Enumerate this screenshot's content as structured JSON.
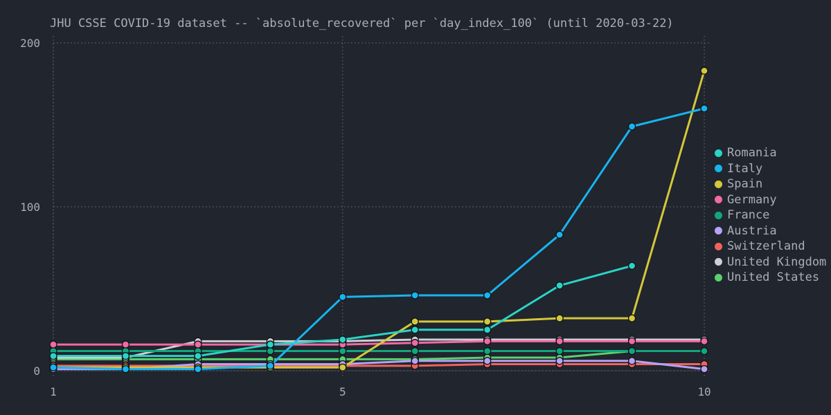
{
  "chart_data": {
    "type": "line",
    "title": "JHU CSSE COVID-19 dataset -- `absolute_recovered` per `day_index_100` (until 2020-03-22)",
    "xlabel": "",
    "ylabel": "",
    "x": [
      1,
      2,
      3,
      4,
      5,
      6,
      7,
      8,
      9,
      10
    ],
    "xticks": [
      1,
      5,
      10
    ],
    "yticks": [
      0,
      100,
      200
    ],
    "xlim": [
      1,
      10
    ],
    "ylim": [
      0,
      200
    ],
    "grid": true,
    "legend_position": "right",
    "series": [
      {
        "name": "Romania",
        "color": "#2ad4c6",
        "values": [
          9,
          9,
          9,
          16,
          19,
          25,
          25,
          52,
          64,
          null
        ]
      },
      {
        "name": "Italy",
        "color": "#18b4ee",
        "values": [
          2,
          1,
          1,
          3,
          45,
          46,
          46,
          83,
          149,
          160
        ]
      },
      {
        "name": "Spain",
        "color": "#d4c83a",
        "values": [
          2,
          2,
          2,
          2,
          2,
          30,
          30,
          32,
          32,
          183
        ]
      },
      {
        "name": "Germany",
        "color": "#f06aa6",
        "values": [
          16,
          16,
          16,
          16,
          16,
          17,
          18,
          18,
          18,
          18
        ]
      },
      {
        "name": "France",
        "color": "#12a67e",
        "values": [
          12,
          12,
          12,
          12,
          12,
          12,
          12,
          12,
          12,
          12
        ]
      },
      {
        "name": "Austria",
        "color": "#b7a2f5",
        "values": [
          1,
          1,
          4,
          4,
          4,
          6,
          6,
          6,
          6,
          1
        ]
      },
      {
        "name": "Switzerland",
        "color": "#f0635c",
        "values": [
          3,
          3,
          3,
          3,
          3,
          3,
          4,
          4,
          4,
          4
        ]
      },
      {
        "name": "United Kingdom",
        "color": "#cfcfd4",
        "values": [
          8,
          8,
          18,
          18,
          18,
          19,
          19,
          19,
          19,
          19
        ]
      },
      {
        "name": "United States",
        "color": "#5ad16e",
        "values": [
          7,
          7,
          7,
          7,
          7,
          7,
          8,
          8,
          12,
          12
        ]
      }
    ]
  }
}
